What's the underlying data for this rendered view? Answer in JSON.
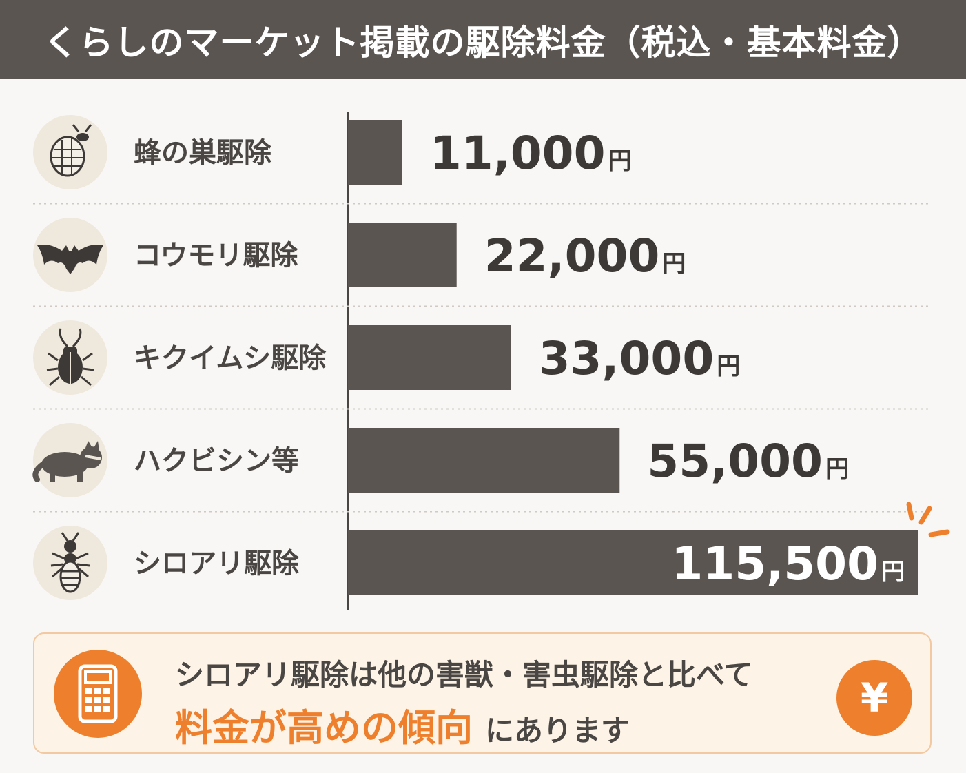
{
  "header": {
    "title": "くらしのマーケット掲載の駆除料金（税込・基本料金）"
  },
  "chart_data": {
    "type": "bar",
    "orientation": "horizontal",
    "categories": [
      "蜂の巣駆除",
      "コウモリ駆除",
      "キクイムシ駆除",
      "ハクビシン等",
      "シロアリ駆除"
    ],
    "values": [
      11000,
      22000,
      33000,
      55000,
      115500
    ],
    "value_labels": [
      "11,000",
      "22,000",
      "33,000",
      "55,000",
      "115,500"
    ],
    "unit": "円",
    "icons": [
      "beehive-icon",
      "bat-icon",
      "beetle-icon",
      "civet-icon",
      "termite-icon"
    ],
    "highlight_index": 4,
    "colors": {
      "bar": "#5a5551",
      "icon_bg": "#efe8dd",
      "highlight": "#ee7f2d",
      "value_text": "#3d3936"
    }
  },
  "note": {
    "line1": "シロアリ駆除は他の害獣・害虫駆除と比べて",
    "emphasis": "料金が高めの傾向",
    "rest": "にあります",
    "left_icon": "calculator-icon",
    "right_icon": "yen-icon",
    "yen_symbol": "¥"
  }
}
